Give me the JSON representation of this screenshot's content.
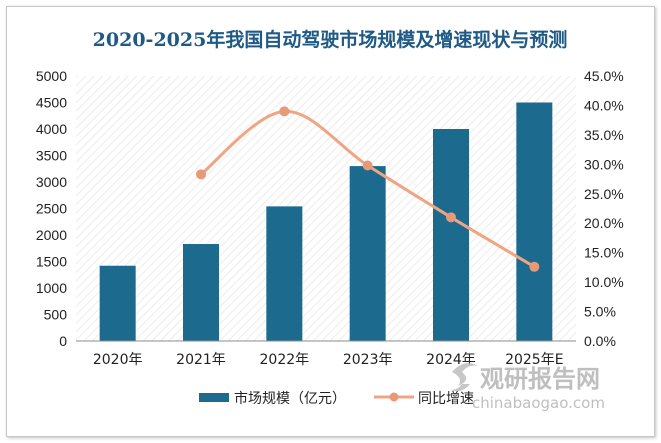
{
  "colors": {
    "title": "#1f5a86",
    "bar": "#1c6a8e",
    "line": "#f0a582",
    "marker": "#e79a78"
  },
  "watermark": {
    "brand": "观研报告网",
    "url": "chinabaogao.com",
    "icon": "logo-swirl-icon"
  },
  "chart_data": {
    "type": "bar",
    "title": "2020-2025年我国自动驾驶市场规模及增速现状与预测",
    "categories": [
      "2020年",
      "2021年",
      "2022年",
      "2023年",
      "2024年",
      "2025年E"
    ],
    "series": [
      {
        "name": "市场规模（亿元）",
        "type": "bar",
        "axis": "left",
        "values": [
          1420,
          1830,
          2540,
          3300,
          4000,
          4500
        ]
      },
      {
        "name": "同比增速",
        "type": "line",
        "axis": "right",
        "values": [
          null,
          28.3,
          39.0,
          29.8,
          21.0,
          12.6
        ]
      }
    ],
    "yleft": {
      "min": 0,
      "max": 5000,
      "step": 500,
      "ticks": [
        "0",
        "500",
        "1000",
        "1500",
        "2000",
        "2500",
        "3000",
        "3500",
        "4000",
        "4500",
        "5000"
      ]
    },
    "yright": {
      "min": 0,
      "max": 45,
      "step": 5,
      "ticks": [
        "0.0%",
        "5.0%",
        "10.0%",
        "15.0%",
        "20.0%",
        "25.0%",
        "30.0%",
        "35.0%",
        "40.0%",
        "45.0%"
      ]
    },
    "legend_position": "bottom",
    "grid": false,
    "plot_background": "diagonal-hatch"
  }
}
